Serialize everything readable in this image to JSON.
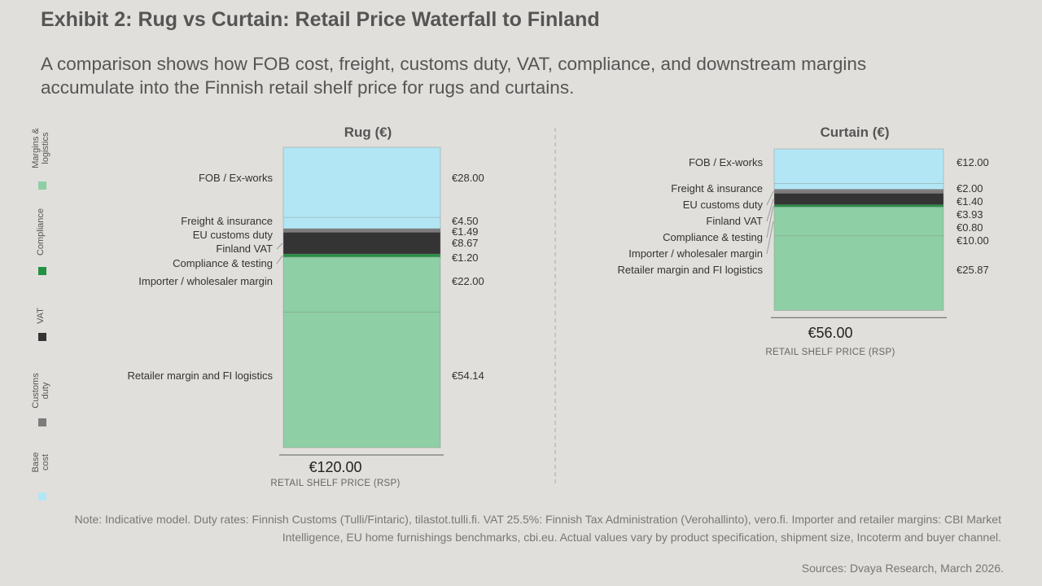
{
  "header": {
    "title": "Exhibit 2: Rug vs Curtain: Retail Price Waterfall to Finland",
    "subtitle": "A comparison shows how FOB cost, freight, customs duty, VAT, compliance, and downstream margins accumulate into the Finnish retail shelf price for rugs and curtains."
  },
  "colors": {
    "base_cost": "#b3e6f5",
    "customs_duty": "#7c7c7c",
    "vat": "#343434",
    "compliance": "#249143",
    "margins": "#8ecfa5"
  },
  "chart_data": {
    "type": "stacked-bar",
    "legend_position": "left-vertical",
    "legend": [
      {
        "name": "Margins & logistics",
        "color": "#8ecfa5"
      },
      {
        "name": "Compliance",
        "color": "#249143"
      },
      {
        "name": "VAT",
        "color": "#343434"
      },
      {
        "name": "Customs duty",
        "color": "#7c7c7c"
      },
      {
        "name": "Base cost",
        "color": "#b3e6f5"
      }
    ],
    "charts": [
      {
        "title": "Rug (€)",
        "total": 120.0,
        "total_label": "€120.00",
        "total_caption": "RETAIL SHELF PRICE (RSP)",
        "components": [
          {
            "label": "FOB / Ex-works",
            "value": 28.0,
            "value_label": "€28.00",
            "category": "Base cost"
          },
          {
            "label": "Freight & insurance",
            "value": 4.5,
            "value_label": "€4.50",
            "category": "Base cost"
          },
          {
            "label": "EU customs duty",
            "value": 1.49,
            "value_label": "€1.49",
            "category": "Customs duty"
          },
          {
            "label": "Finland VAT",
            "value": 8.67,
            "value_label": "€8.67",
            "category": "VAT"
          },
          {
            "label": "Compliance & testing",
            "value": 1.2,
            "value_label": "€1.20",
            "category": "Compliance"
          },
          {
            "label": "Importer / wholesaler margin",
            "value": 22.0,
            "value_label": "€22.00",
            "category": "Margins & logistics"
          },
          {
            "label": "Retailer margin and FI logistics",
            "value": 54.14,
            "value_label": "€54.14",
            "category": "Margins & logistics"
          }
        ]
      },
      {
        "title": "Curtain (€)",
        "total": 56.0,
        "total_label": "€56.00",
        "total_caption": "RETAIL SHELF PRICE (RSP)",
        "components": [
          {
            "label": "FOB / Ex-works",
            "value": 12.0,
            "value_label": "€12.00",
            "category": "Base cost"
          },
          {
            "label": "Freight & insurance",
            "value": 2.0,
            "value_label": "€2.00",
            "category": "Base cost"
          },
          {
            "label": "EU customs duty",
            "value": 1.4,
            "value_label": "€1.40",
            "category": "Customs duty"
          },
          {
            "label": "Finland VAT",
            "value": 3.93,
            "value_label": "€3.93",
            "category": "VAT"
          },
          {
            "label": "Compliance & testing",
            "value": 0.8,
            "value_label": "€0.80",
            "category": "Compliance"
          },
          {
            "label": "Importer / wholesaler margin",
            "value": 10.0,
            "value_label": "€10.00",
            "category": "Margins & logistics"
          },
          {
            "label": "Retailer margin and FI logistics",
            "value": 25.87,
            "value_label": "€25.87",
            "category": "Margins & logistics"
          }
        ]
      }
    ]
  },
  "footer": {
    "note": "Note: Indicative model. Duty rates: Finnish Customs (Tulli/Fintaric), tilastot.tulli.fi. VAT 25.5%: Finnish Tax Administration (Verohallinto), vero.fi. Importer and retailer margins: CBI Market Intelligence, EU home furnishings benchmarks, cbi.eu. Actual values vary by product specification, shipment size, Incoterm and buyer channel.",
    "source": "Sources: Dvaya Research, March 2026."
  }
}
